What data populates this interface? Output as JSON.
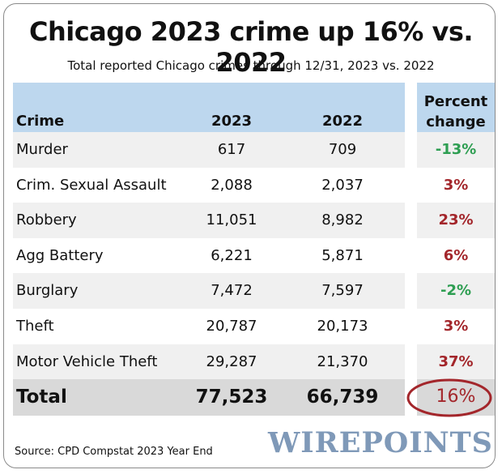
{
  "header": {
    "title": "Chicago 2023 crime up 16% vs. 2022",
    "subtitle": "Total reported Chicago crimes through 12/31, 2023 vs. 2022"
  },
  "colors": {
    "header_bg": "#bdd7ee",
    "decrease": "#2e9e52",
    "increase": "#a3262b",
    "highlight_ring": "#a3262b",
    "brand": "#7f99b8"
  },
  "chart_data": {
    "type": "table",
    "title": "Chicago 2023 crime up 16% vs. 2022",
    "subtitle": "Total reported Chicago crimes through 12/31, 2023 vs. 2022",
    "columns": [
      "Crime",
      "2023",
      "2022",
      "Percent change"
    ],
    "rows": [
      {
        "crime": "Murder",
        "y2023": "617",
        "y2022": "709",
        "pct": "-13%",
        "direction": "down"
      },
      {
        "crime": "Crim. Sexual Assault",
        "y2023": "2,088",
        "y2022": "2,037",
        "pct": "3%",
        "direction": "up"
      },
      {
        "crime": "Robbery",
        "y2023": "11,051",
        "y2022": "8,982",
        "pct": "23%",
        "direction": "up"
      },
      {
        "crime": "Agg Battery",
        "y2023": "6,221",
        "y2022": "5,871",
        "pct": "6%",
        "direction": "up"
      },
      {
        "crime": "Burglary",
        "y2023": "7,472",
        "y2022": "7,597",
        "pct": "-2%",
        "direction": "down"
      },
      {
        "crime": "Theft",
        "y2023": "20,787",
        "y2022": "20,173",
        "pct": "3%",
        "direction": "up"
      },
      {
        "crime": "Motor Vehicle Theft",
        "y2023": "29,287",
        "y2022": "21,370",
        "pct": "37%",
        "direction": "up"
      }
    ],
    "total": {
      "crime": "Total",
      "y2023": "77,523",
      "y2022": "66,739",
      "pct": "16%",
      "direction": "up",
      "circled": true
    }
  },
  "footer": {
    "source": "Source: CPD Compstat 2023 Year End",
    "brand": "WIREPOINTS"
  }
}
